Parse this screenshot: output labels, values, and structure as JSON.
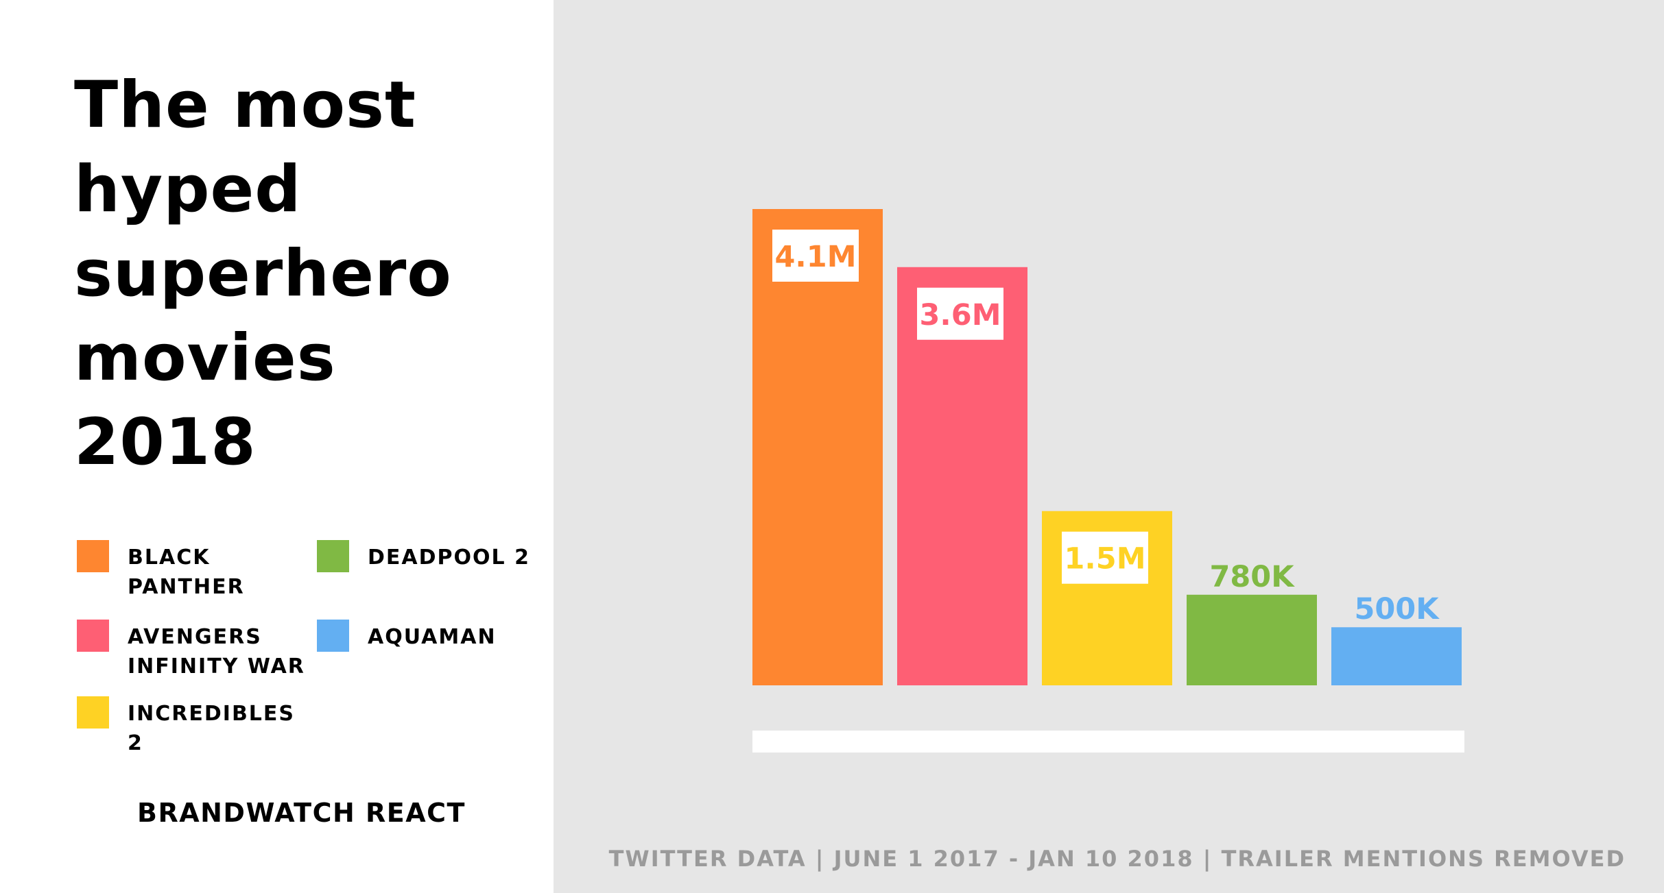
{
  "title": "The most hyped superhero movies 2018",
  "brand": "BRANDWATCH REACT",
  "footnote": "TWITTER DATA | JUNE 1 2017 - JAN 10 2018 | TRAILER MENTIONS REMOVED",
  "legend": [
    {
      "label": "BLACK PANTHER",
      "color": "#fe8630"
    },
    {
      "label": "AVENGERS INFINITY WAR",
      "color": "#fe5f74"
    },
    {
      "label": "INCREDIBLES 2",
      "color": "#fed224"
    },
    {
      "label": "DEADPOOL 2",
      "color": "#80b944"
    },
    {
      "label": "AQUAMAN",
      "color": "#63aff2"
    }
  ],
  "chart_data": {
    "type": "bar",
    "categories": [
      "BLACK PANTHER",
      "AVENGERS INFINITY WAR",
      "INCREDIBLES 2",
      "DEADPOOL 2",
      "AQUAMAN"
    ],
    "values": [
      4100000,
      3600000,
      1500000,
      780000,
      500000
    ],
    "data_labels": [
      "4.1M",
      "3.6M",
      "1.5M",
      "780K",
      "500K"
    ],
    "colors": [
      "#fe8630",
      "#fe5f74",
      "#fed224",
      "#80b944",
      "#63aff2"
    ],
    "label_style": [
      "boxed",
      "boxed",
      "boxed",
      "above",
      "above"
    ],
    "title": "The most hyped superhero movies 2018",
    "xlabel": "",
    "ylabel": "",
    "grid": false,
    "legend_position": "left"
  }
}
